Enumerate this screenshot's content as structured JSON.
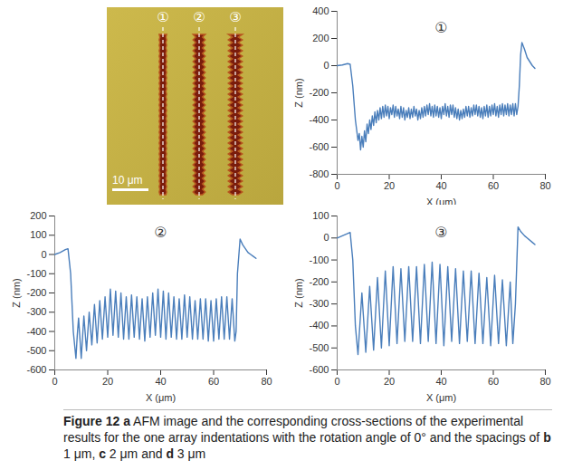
{
  "image": {
    "labels": [
      "①",
      "②",
      "③"
    ],
    "scale_bar": "10 μm"
  },
  "chart_data": [
    {
      "type": "line",
      "annotation": "①",
      "x_label": "X (μm)",
      "y_label": "Z (nm)",
      "color": "#4a7ebb",
      "xlim": [
        0,
        80
      ],
      "xticks": [
        0,
        20,
        40,
        60,
        80
      ],
      "ylim": [
        -800,
        400
      ],
      "yticks": [
        -800,
        -600,
        -400,
        -200,
        0,
        200,
        400
      ],
      "x": [
        0,
        2,
        4,
        5,
        6,
        7,
        8,
        8.5,
        9,
        9.5,
        10,
        10.5,
        11,
        11.5,
        12,
        12.5,
        13,
        13.5,
        14,
        14.5,
        15,
        15.5,
        16,
        16.5,
        17,
        17.5,
        18,
        18.5,
        19,
        19.5,
        20,
        20.5,
        21,
        21.5,
        22,
        22.5,
        23,
        23.5,
        24,
        24.5,
        25,
        25.5,
        26,
        26.5,
        27,
        27.5,
        28,
        28.5,
        29,
        29.5,
        30,
        30.5,
        31,
        31.5,
        32,
        32.5,
        33,
        33.5,
        34,
        34.5,
        35,
        35.5,
        36,
        36.5,
        37,
        37.5,
        38,
        38.5,
        39,
        39.5,
        40,
        40.5,
        41,
        41.5,
        42,
        42.5,
        43,
        43.5,
        44,
        44.5,
        45,
        45.5,
        46,
        46.5,
        47,
        47.5,
        48,
        48.5,
        49,
        49.5,
        50,
        50.5,
        51,
        51.5,
        52,
        52.5,
        53,
        53.5,
        54,
        54.5,
        55,
        55.5,
        56,
        56.5,
        57,
        57.5,
        58,
        58.5,
        59,
        59.5,
        60,
        60.5,
        61,
        61.5,
        62,
        62.5,
        63,
        63.5,
        64,
        64.5,
        65,
        65.5,
        66,
        66.5,
        67,
        67.5,
        68,
        68.5,
        69,
        69.5,
        70,
        70.5,
        71,
        72,
        73,
        74,
        75,
        76
      ],
      "values": [
        0,
        5,
        15,
        10,
        -150,
        -400,
        -550,
        -500,
        -620,
        -520,
        -600,
        -480,
        -560,
        -430,
        -500,
        -400,
        -470,
        -370,
        -440,
        -340,
        -420,
        -330,
        -400,
        -310,
        -390,
        -300,
        -380,
        -290,
        -370,
        -300,
        -390,
        -310,
        -360,
        -290,
        -380,
        -300,
        -370,
        -320,
        -390,
        -300,
        -380,
        -310,
        -400,
        -330,
        -380,
        -310,
        -390,
        -320,
        -380,
        -300,
        -370,
        -320,
        -400,
        -330,
        -390,
        -310,
        -380,
        -300,
        -370,
        -290,
        -360,
        -280,
        -370,
        -300,
        -380,
        -290,
        -370,
        -300,
        -380,
        -310,
        -390,
        -300,
        -360,
        -280,
        -370,
        -300,
        -380,
        -290,
        -360,
        -290,
        -380,
        -310,
        -390,
        -320,
        -400,
        -330,
        -390,
        -320,
        -380,
        -300,
        -370,
        -300,
        -380,
        -310,
        -370,
        -290,
        -360,
        -290,
        -370,
        -300,
        -380,
        -310,
        -390,
        -300,
        -370,
        -290,
        -380,
        -300,
        -370,
        -290,
        -360,
        -280,
        -370,
        -300,
        -380,
        -290,
        -360,
        -280,
        -370,
        -290,
        -360,
        -280,
        -370,
        -290,
        -360,
        -280,
        -370,
        -280,
        -360,
        -300,
        -150,
        80,
        170,
        120,
        60,
        30,
        0,
        -20
      ]
    },
    {
      "type": "line",
      "annotation": "②",
      "x_label": "X (μm)",
      "y_label": "Z (nm)",
      "color": "#4a7ebb",
      "xlim": [
        0,
        80
      ],
      "xticks": [
        0,
        20,
        40,
        60,
        80
      ],
      "ylim": [
        -600,
        200
      ],
      "yticks": [
        -600,
        -500,
        -400,
        -300,
        -200,
        -100,
        0,
        100,
        200
      ],
      "x": [
        0,
        2,
        4,
        5,
        6,
        7,
        8,
        8.5,
        9,
        10,
        11,
        12,
        13,
        14,
        15,
        16,
        17,
        18,
        19,
        20,
        21,
        22,
        23,
        24,
        25,
        26,
        27,
        28,
        29,
        30,
        31,
        32,
        33,
        34,
        35,
        36,
        37,
        38,
        39,
        40,
        41,
        42,
        43,
        44,
        45,
        46,
        47,
        48,
        49,
        50,
        51,
        52,
        53,
        54,
        55,
        56,
        57,
        58,
        59,
        60,
        61,
        62,
        63,
        64,
        65,
        66,
        67,
        68,
        68.5,
        69,
        70,
        71,
        72,
        73,
        74,
        75,
        76
      ],
      "values": [
        0,
        10,
        25,
        30,
        -100,
        -400,
        -540,
        -420,
        -330,
        -540,
        -320,
        -500,
        -300,
        -470,
        -260,
        -460,
        -240,
        -440,
        -220,
        -430,
        -180,
        -420,
        -190,
        -430,
        -200,
        -440,
        -220,
        -440,
        -210,
        -430,
        -220,
        -440,
        -230,
        -450,
        -220,
        -430,
        -200,
        -420,
        -180,
        -430,
        -190,
        -440,
        -200,
        -430,
        -220,
        -440,
        -230,
        -440,
        -210,
        -430,
        -220,
        -440,
        -240,
        -440,
        -230,
        -440,
        -230,
        -450,
        -240,
        -450,
        -230,
        -440,
        -220,
        -440,
        -220,
        -440,
        -230,
        -450,
        -400,
        -100,
        80,
        50,
        30,
        10,
        0,
        -10,
        -20
      ]
    },
    {
      "type": "line",
      "annotation": "③",
      "x_label": "X (μm)",
      "y_label": "Z (nm)",
      "color": "#4a7ebb",
      "xlim": [
        0,
        80
      ],
      "xticks": [
        0,
        20,
        40,
        60,
        80
      ],
      "ylim": [
        -600,
        100
      ],
      "yticks": [
        -600,
        -500,
        -400,
        -300,
        -200,
        -100,
        0,
        100
      ],
      "x": [
        0,
        2,
        4,
        5,
        6,
        7,
        8,
        9.5,
        11,
        12.5,
        14,
        15.5,
        17,
        18.5,
        20,
        21.5,
        23,
        24.5,
        26,
        27.5,
        29,
        30.5,
        32,
        33.5,
        35,
        36.5,
        38,
        39.5,
        41,
        42.5,
        44,
        45.5,
        47,
        48.5,
        50,
        51.5,
        53,
        54.5,
        56,
        57.5,
        59,
        60.5,
        62,
        63.5,
        65,
        66.5,
        67.5,
        68.5,
        69.5,
        70.5,
        72,
        73,
        75,
        76
      ],
      "values": [
        0,
        10,
        20,
        25,
        -100,
        -400,
        -530,
        -250,
        -520,
        -220,
        -510,
        -180,
        -500,
        -150,
        -490,
        -130,
        -480,
        -140,
        -470,
        -130,
        -470,
        -130,
        -480,
        -120,
        -470,
        -110,
        -480,
        -120,
        -490,
        -130,
        -470,
        -140,
        -480,
        -150,
        -470,
        -150,
        -480,
        -160,
        -480,
        -180,
        -490,
        -170,
        -480,
        -190,
        -490,
        -200,
        -480,
        -300,
        50,
        30,
        10,
        0,
        -20,
        -30
      ]
    }
  ],
  "caption": [
    {
      "text": "Figure 12",
      "bold": true
    },
    {
      "text": " a",
      "bold": true
    },
    {
      "text": " AFM image and the corresponding cross-sections of the experimental results for the one array indentations with the rotation angle of 0° and the spacings of ",
      "bold": false
    },
    {
      "text": "b",
      "bold": true
    },
    {
      "text": " 1 μm, ",
      "bold": false
    },
    {
      "text": "c",
      "bold": true
    },
    {
      "text": " 2 μm and ",
      "bold": false
    },
    {
      "text": "d",
      "bold": true
    },
    {
      "text": " 3 μm",
      "bold": false
    }
  ]
}
